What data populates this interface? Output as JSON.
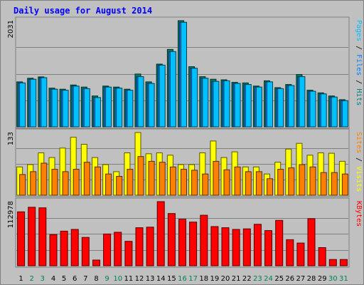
{
  "chart_data": {
    "type": "bar",
    "title": "Daily usage for August 2014",
    "categories": [
      "1",
      "2",
      "3",
      "4",
      "5",
      "6",
      "7",
      "8",
      "9",
      "10",
      "11",
      "12",
      "13",
      "14",
      "15",
      "16",
      "17",
      "18",
      "19",
      "20",
      "21",
      "22",
      "23",
      "24",
      "25",
      "26",
      "27",
      "28",
      "29",
      "30",
      "31"
    ],
    "weekend_days": [
      "2",
      "3",
      "9",
      "10",
      "16",
      "17",
      "23",
      "24",
      "30",
      "31"
    ],
    "panels": [
      {
        "id": "pages-files-hits",
        "max_label": "2031",
        "ymax": 2031,
        "label_parts": [
          {
            "text": "Pages",
            "color": "#00c0ff"
          },
          {
            "text": " / ",
            "color": "#000000"
          },
          {
            "text": "Files",
            "color": "#0080ff"
          },
          {
            "text": " / ",
            "color": "#000000"
          },
          {
            "text": "Hits",
            "color": "#008080"
          }
        ],
        "series": [
          {
            "name": "Hits",
            "color": "#008060",
            "values": [
              860,
              930,
              955,
              740,
              720,
              800,
              760,
              590,
              780,
              760,
              720,
              1010,
              860,
              1200,
              1480,
              2031,
              1150,
              960,
              910,
              900,
              850,
              840,
              780,
              880,
              750,
              810,
              1000,
              700,
              650,
              590,
              520
            ]
          },
          {
            "name": "Files",
            "color": "#0080ff",
            "values": [
              840,
              910,
              940,
              720,
              700,
              780,
              730,
              560,
              760,
              740,
              700,
              960,
              830,
              1180,
              1440,
              2000,
              1120,
              930,
              870,
              880,
              830,
              810,
              760,
              860,
              730,
              790,
              960,
              680,
              630,
              570,
              500
            ]
          },
          {
            "name": "Pages",
            "color": "#00c0ff",
            "values": [
              840,
              910,
              940,
              720,
              700,
              780,
              730,
              560,
              760,
              740,
              700,
              960,
              830,
              1180,
              1440,
              2000,
              1120,
              930,
              870,
              880,
              830,
              810,
              760,
              860,
              730,
              790,
              960,
              680,
              630,
              570,
              500
            ]
          }
        ]
      },
      {
        "id": "visits-sites",
        "max_label": "133",
        "ymax": 133,
        "label_parts": [
          {
            "text": "Sites",
            "color": "#ff8000"
          },
          {
            "text": " / ",
            "color": "#000000"
          },
          {
            "text": "Visits",
            "color": "#ffff00"
          }
        ],
        "series": [
          {
            "name": "Visits",
            "color": "#ffff00",
            "values": [
              60,
              65,
              90,
              80,
              100,
              123,
              108,
              80,
              65,
              50,
              90,
              133,
              88,
              90,
              85,
              65,
              65,
              90,
              115,
              80,
              92,
              60,
              60,
              45,
              70,
              98,
              110,
              85,
              90,
              89,
              72
            ]
          },
          {
            "name": "Sites",
            "color": "#ff8000",
            "values": [
              44,
              50,
              68,
              55,
              50,
              55,
              70,
              60,
              45,
              40,
              55,
              82,
              72,
              70,
              60,
              55,
              53,
              45,
              72,
              54,
              60,
              50,
              50,
              35,
              55,
              58,
              65,
              60,
              48,
              48,
              45
            ]
          }
        ]
      },
      {
        "id": "kbytes",
        "max_label": "112978",
        "ymax": 112978,
        "label_parts": [
          {
            "text": "KBytes",
            "color": "#ff0000"
          }
        ],
        "series": [
          {
            "name": "KBytes",
            "color": "#ff0000",
            "values": [
              95000,
              103000,
              102000,
              55000,
              61000,
              64000,
              50000,
              10000,
              56000,
              59000,
              43000,
              67000,
              68000,
              112978,
              92000,
              82000,
              77000,
              89000,
              69000,
              67000,
              64000,
              65000,
              73000,
              62000,
              80000,
              46000,
              40000,
              83000,
              32000,
              11000,
              11000
            ]
          }
        ]
      }
    ]
  }
}
